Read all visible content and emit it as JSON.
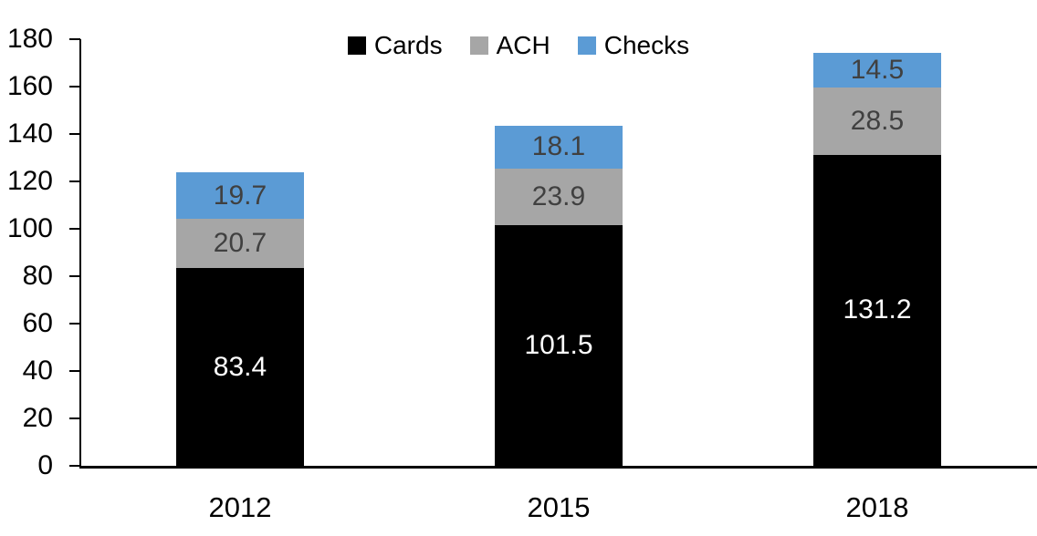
{
  "chart_data": {
    "type": "bar",
    "stacked": true,
    "title": "",
    "xlabel": "",
    "ylabel": "",
    "categories": [
      "2012",
      "2015",
      "2018"
    ],
    "series": [
      {
        "name": "Cards",
        "color": "#000000",
        "label_color": "#ffffff",
        "values": [
          83.4,
          101.5,
          131.2
        ]
      },
      {
        "name": "ACH",
        "color": "#A6A6A6",
        "label_color": "#404040",
        "values": [
          20.7,
          23.9,
          28.5
        ]
      },
      {
        "name": "Checks",
        "color": "#5B9BD5",
        "label_color": "#404040",
        "values": [
          19.7,
          18.1,
          14.5
        ]
      }
    ],
    "ylim": [
      0,
      180
    ],
    "yticks": [
      0,
      20,
      40,
      60,
      80,
      100,
      120,
      140,
      160,
      180
    ],
    "grid": false,
    "legend_position": "top-center",
    "axis_color": "#000000",
    "background": "#ffffff"
  }
}
